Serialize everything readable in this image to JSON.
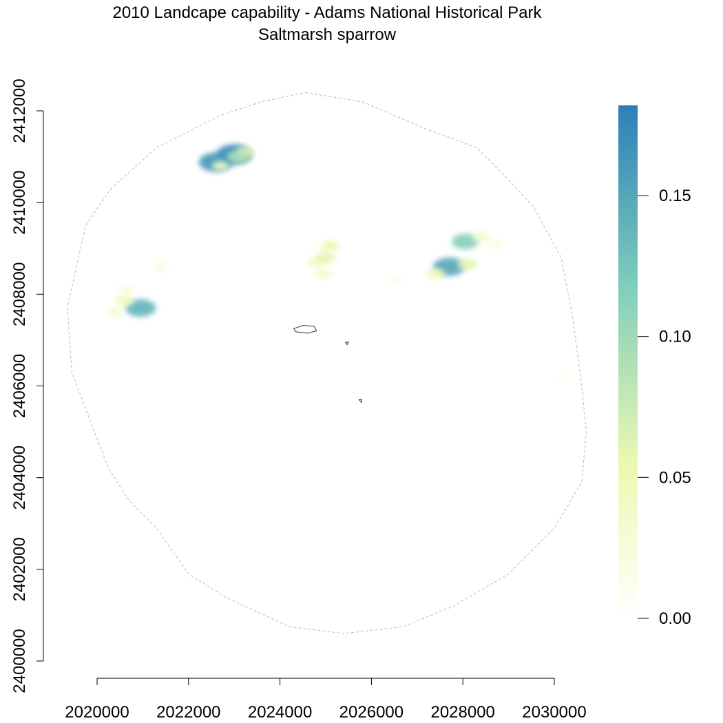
{
  "chart_data": {
    "type": "heatmap",
    "title": "2010 Landcape capability - Adams National Historical Park",
    "subtitle": "Saltmarsh sparrow",
    "xlim": [
      2020000,
      2030000
    ],
    "ylim": [
      2400000,
      2412000
    ],
    "x_ticks": [
      2020000,
      2022000,
      2024000,
      2026000,
      2028000,
      2030000
    ],
    "y_ticks": [
      2400000,
      2402000,
      2404000,
      2406000,
      2408000,
      2410000,
      2412000
    ],
    "x_tick_labels": [
      "2020000",
      "2022000",
      "2024000",
      "2026000",
      "2028000",
      "2030000"
    ],
    "y_tick_labels": [
      "2400000",
      "2402000",
      "2404000",
      "2406000",
      "2408000",
      "2410000",
      "2412000"
    ],
    "legend": {
      "range": [
        0.0,
        0.182
      ],
      "ticks": [
        0.0,
        0.05,
        0.1,
        0.15
      ],
      "tick_labels": [
        "0.00",
        "0.05",
        "0.10",
        "0.15"
      ],
      "colors": [
        "#ffffff",
        "#edf8b1",
        "#7fcdbb",
        "#2c7fb8"
      ],
      "placement": "right"
    },
    "study_area_boundary": {
      "style": "dashed",
      "color": "#bbbbbb",
      "points": [
        [
          2024550,
          2412400
        ],
        [
          2025800,
          2412200
        ],
        [
          2027200,
          2411600
        ],
        [
          2028300,
          2411200
        ],
        [
          2029000,
          2410500
        ],
        [
          2029550,
          2409900
        ],
        [
          2030150,
          2408800
        ],
        [
          2030400,
          2407500
        ],
        [
          2030600,
          2406000
        ],
        [
          2030700,
          2405000
        ],
        [
          2030600,
          2403900
        ],
        [
          2030000,
          2402900
        ],
        [
          2029000,
          2401900
        ],
        [
          2027800,
          2401200
        ],
        [
          2026700,
          2400750
        ],
        [
          2025400,
          2400600
        ],
        [
          2024200,
          2400750
        ],
        [
          2022800,
          2401400
        ],
        [
          2022000,
          2401900
        ],
        [
          2021300,
          2402900
        ],
        [
          2020700,
          2403500
        ],
        [
          2020250,
          2404200
        ],
        [
          2019750,
          2405500
        ],
        [
          2019450,
          2406300
        ],
        [
          2019350,
          2407700
        ],
        [
          2019750,
          2409500
        ],
        [
          2020300,
          2410300
        ],
        [
          2021300,
          2411200
        ],
        [
          2022700,
          2411900
        ],
        [
          2023600,
          2412200
        ],
        [
          2024550,
          2412400
        ]
      ]
    },
    "park_boundaries": [
      {
        "color": "#333333",
        "points": [
          [
            2024300,
            2407250
          ],
          [
            2024500,
            2407320
          ],
          [
            2024750,
            2407300
          ],
          [
            2024800,
            2407200
          ],
          [
            2024600,
            2407150
          ],
          [
            2024350,
            2407180
          ],
          [
            2024300,
            2407250
          ]
        ]
      },
      {
        "color": "#333333",
        "points": [
          [
            2025430,
            2406950
          ],
          [
            2025500,
            2406960
          ],
          [
            2025470,
            2406900
          ],
          [
            2025430,
            2406950
          ]
        ]
      },
      {
        "color": "#333333",
        "points": [
          [
            2025730,
            2405700
          ],
          [
            2025790,
            2405710
          ],
          [
            2025780,
            2405640
          ],
          [
            2025730,
            2405700
          ]
        ]
      }
    ],
    "patches": [
      {
        "x": 2023000,
        "y": 2411050,
        "value": 0.175
      },
      {
        "x": 2022600,
        "y": 2410880,
        "value": 0.165
      },
      {
        "x": 2023250,
        "y": 2411100,
        "value": 0.05
      },
      {
        "x": 2022700,
        "y": 2410800,
        "value": 0.04
      },
      {
        "x": 2023100,
        "y": 2411000,
        "value": 0.09
      },
      {
        "x": 2020950,
        "y": 2407700,
        "value": 0.14
      },
      {
        "x": 2020600,
        "y": 2407850,
        "value": 0.05
      },
      {
        "x": 2020400,
        "y": 2407600,
        "value": 0.03
      },
      {
        "x": 2020650,
        "y": 2408100,
        "value": 0.03
      },
      {
        "x": 2021400,
        "y": 2408600,
        "value": 0.02
      },
      {
        "x": 2025100,
        "y": 2409050,
        "value": 0.055
      },
      {
        "x": 2024800,
        "y": 2408700,
        "value": 0.045
      },
      {
        "x": 2024950,
        "y": 2408450,
        "value": 0.04
      },
      {
        "x": 2025000,
        "y": 2408800,
        "value": 0.06
      },
      {
        "x": 2027700,
        "y": 2408600,
        "value": 0.15
      },
      {
        "x": 2028050,
        "y": 2409150,
        "value": 0.115
      },
      {
        "x": 2028100,
        "y": 2408650,
        "value": 0.06
      },
      {
        "x": 2027400,
        "y": 2408450,
        "value": 0.05
      },
      {
        "x": 2028400,
        "y": 2409250,
        "value": 0.04
      },
      {
        "x": 2028700,
        "y": 2409100,
        "value": 0.025
      },
      {
        "x": 2026500,
        "y": 2408300,
        "value": 0.015
      },
      {
        "x": 2030200,
        "y": 2406200,
        "value": 0.01
      }
    ]
  }
}
